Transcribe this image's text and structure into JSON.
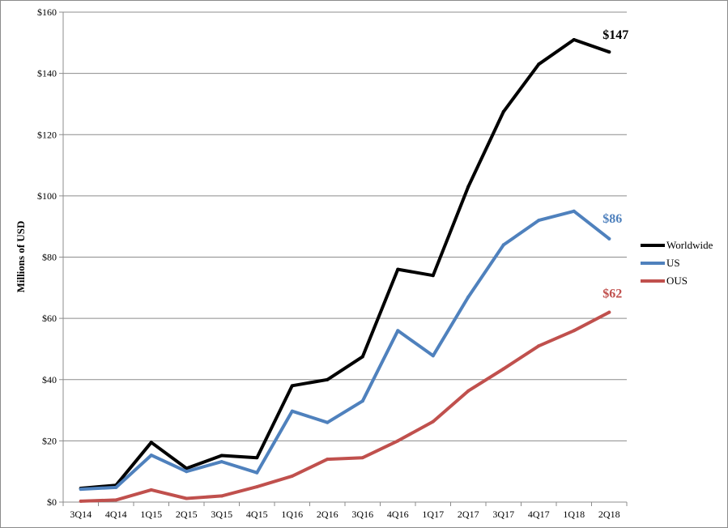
{
  "chart_data": {
    "type": "line",
    "title": "",
    "xlabel": "",
    "ylabel": "Millions of USD",
    "ylim": [
      0,
      160
    ],
    "y_ticks": [
      0,
      20,
      40,
      60,
      80,
      100,
      120,
      140,
      160
    ],
    "y_tick_labels": [
      "$0",
      "$20",
      "$40",
      "$60",
      "$80",
      "$100",
      "$120",
      "$140",
      "$160"
    ],
    "grid": "horizontal",
    "legend_position": "right",
    "categories": [
      "3Q14",
      "4Q14",
      "1Q15",
      "2Q15",
      "3Q15",
      "4Q15",
      "1Q16",
      "2Q16",
      "3Q16",
      "4Q16",
      "1Q17",
      "2Q17",
      "3Q17",
      "4Q17",
      "1Q18",
      "2Q18"
    ],
    "series": [
      {
        "name": "Worldwide",
        "color": "#000000",
        "values": [
          4.5,
          5.5,
          19.5,
          11,
          15.2,
          14.5,
          38,
          40,
          47.5,
          76,
          74,
          103,
          127.5,
          143,
          151,
          147
        ],
        "end_label": "$147"
      },
      {
        "name": "US",
        "color": "#4f81bd",
        "values": [
          4.2,
          4.8,
          15.3,
          10,
          13.2,
          9.6,
          29.7,
          26,
          33,
          56,
          47.8,
          67,
          84,
          92,
          95,
          86
        ],
        "end_label": "$86"
      },
      {
        "name": "OUS",
        "color": "#c0504d",
        "values": [
          0.3,
          0.7,
          4,
          1.2,
          2,
          5,
          8.5,
          14,
          14.5,
          20,
          26.3,
          36.3,
          43.5,
          51,
          56,
          62
        ],
        "end_label": "$62"
      }
    ]
  }
}
